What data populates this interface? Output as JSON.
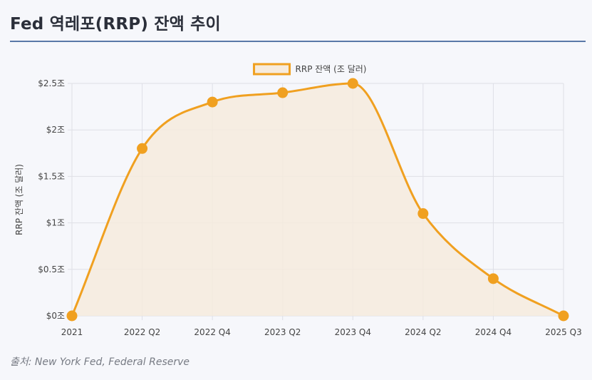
{
  "page": {
    "title": "Fed 역레포(RRP) 잔액 추이",
    "source": "출처: New York Fed, Federal Reserve"
  },
  "colors": {
    "line": "#f0a020",
    "fill": "#f6ebdd",
    "grid": "#dedfe6",
    "axis_text": "#444444"
  },
  "chart_data": {
    "type": "area",
    "title": "",
    "xlabel": "",
    "ylabel": "RRP 잔액 (조 달러)",
    "legend": "top",
    "grid": true,
    "ylim": [
      0,
      2.5
    ],
    "categories": [
      "2021",
      "2022 Q2",
      "2022 Q4",
      "2023 Q2",
      "2023 Q4",
      "2024 Q2",
      "2024 Q4",
      "2025 Q3"
    ],
    "series": [
      {
        "name": "RRP 잔액 (조 달러)",
        "values": [
          0,
          1.8,
          2.3,
          2.4,
          2.5,
          1.1,
          0.4,
          0
        ]
      }
    ],
    "yticks": [
      {
        "value": 0,
        "label": "$0조"
      },
      {
        "value": 0.5,
        "label": "$0.5조"
      },
      {
        "value": 1,
        "label": "$1조"
      },
      {
        "value": 1.5,
        "label": "$1.5조"
      },
      {
        "value": 2,
        "label": "$2조"
      },
      {
        "value": 2.5,
        "label": "$2.5조"
      }
    ]
  }
}
